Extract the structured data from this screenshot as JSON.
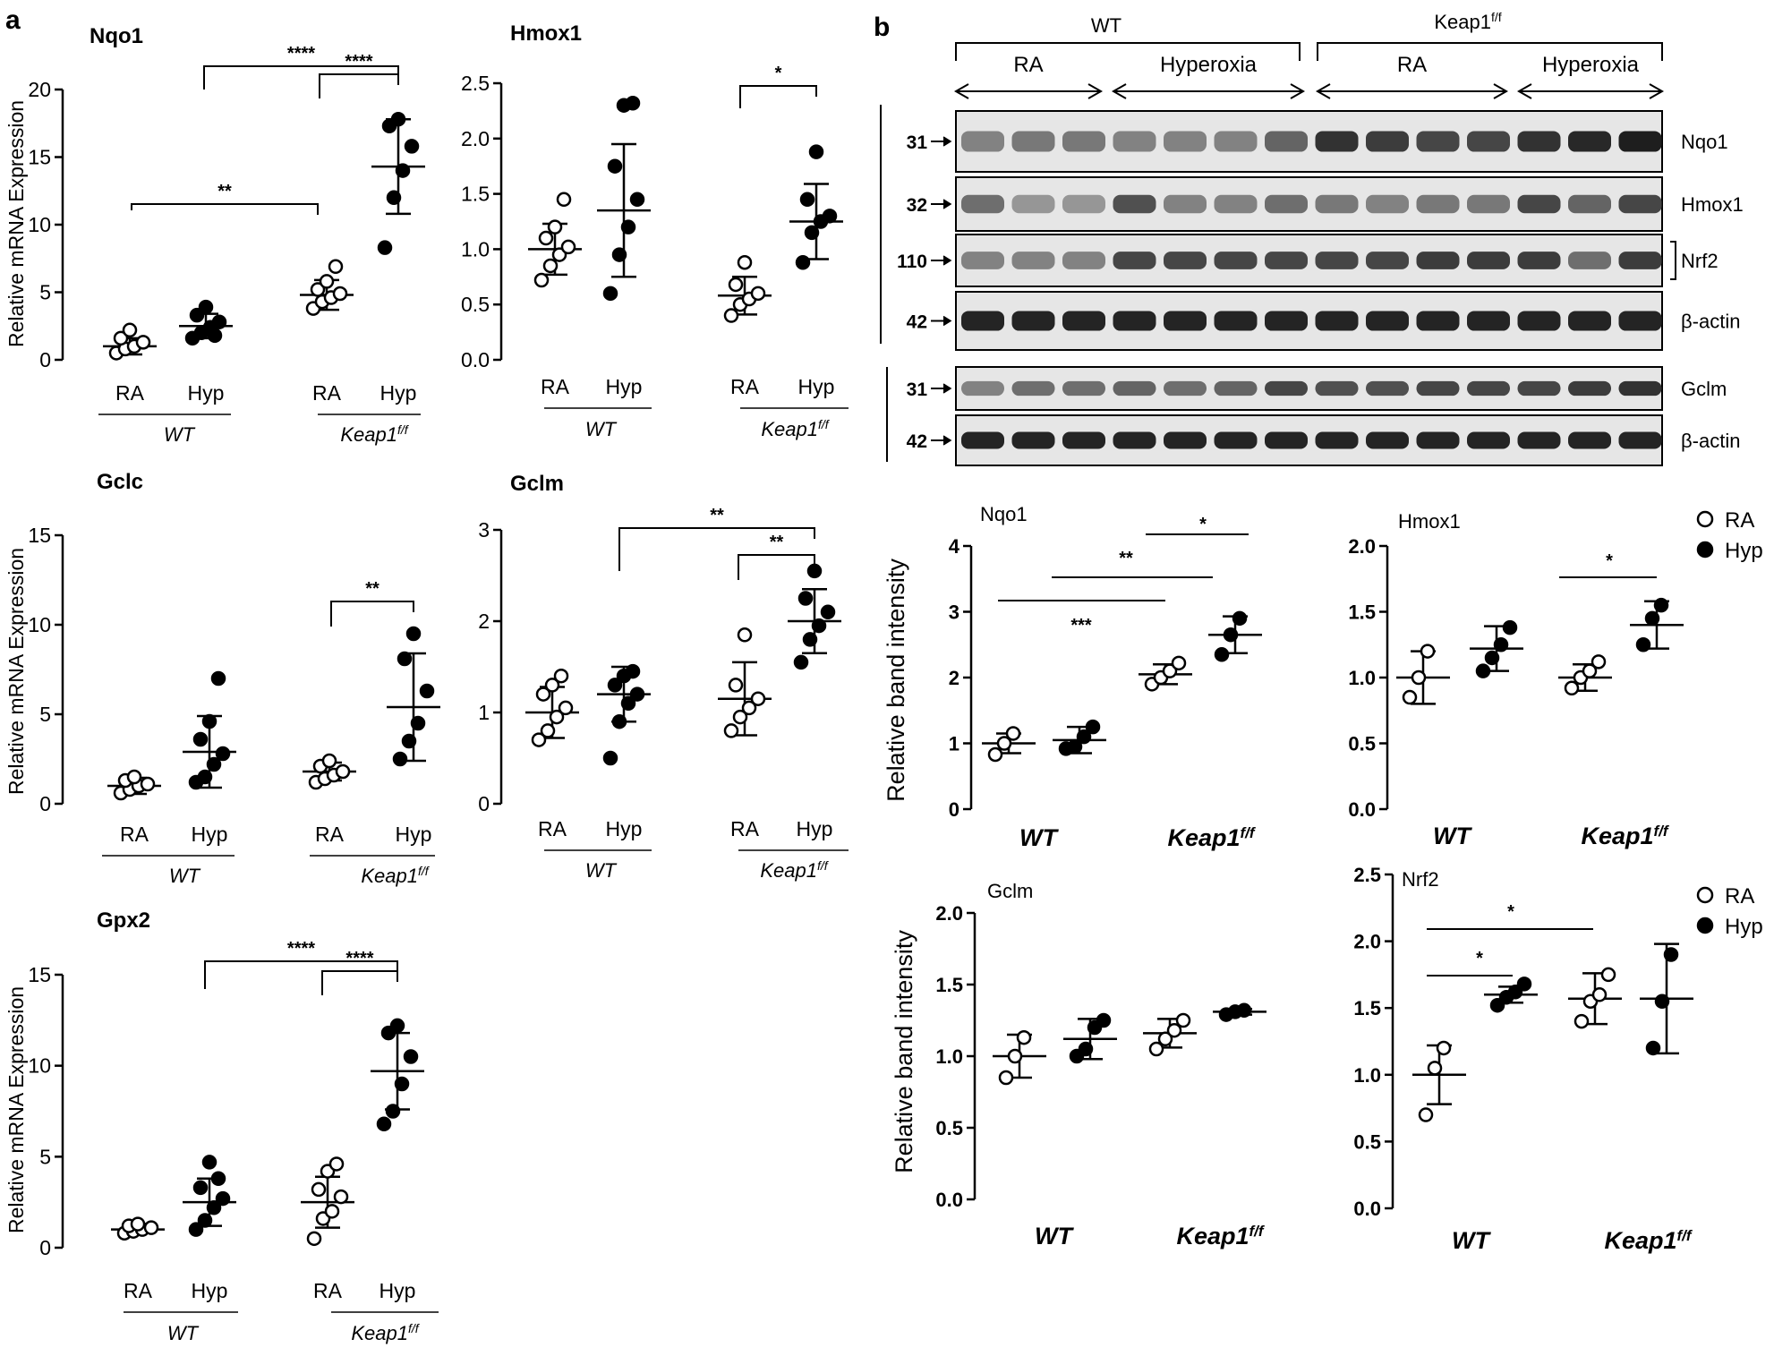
{
  "panel_labels": {
    "a": "a",
    "b": "b"
  },
  "common": {
    "ylabel_mrna": "Relative mRNA Expression",
    "ylabel_band": "Relative band intensity",
    "wt": "WT",
    "keap_base": "Keap1",
    "keap_sup": "f/f",
    "ra": "RA",
    "hyp": "Hyp",
    "hyperoxia": "Hyperoxia"
  },
  "legend": {
    "ra": "RA",
    "hyp": "Hyp"
  },
  "blot": {
    "header_wt": "WT",
    "header_keap_base": "Keap1",
    "header_keap_sup": "f/f",
    "conditions": [
      "RA",
      "Hyperoxia",
      "RA",
      "Hyperoxia"
    ],
    "rows": [
      {
        "mw": "31",
        "label": "Nqo1"
      },
      {
        "mw": "32",
        "label": "Hmox1"
      },
      {
        "mw": "110",
        "label": "Nrf2"
      },
      {
        "mw": "42",
        "label": "β-actin"
      },
      {
        "mw": "31",
        "label": "Gclm"
      },
      {
        "mw": "42",
        "label": "β-actin"
      }
    ]
  },
  "chart_data": [
    {
      "type": "scatter",
      "title": "Nqo1",
      "ylabel": "Relative mRNA Expression",
      "ylim": [
        0,
        20
      ],
      "yticks": [
        "0",
        "5",
        "10",
        "15",
        "20"
      ],
      "groups": [
        {
          "group": "WT",
          "condition": "RA",
          "mean": 1.0,
          "sd": 0.6,
          "values": [
            0.5,
            0.8,
            1.0,
            1.3,
            1.6,
            2.2
          ]
        },
        {
          "group": "WT",
          "condition": "Hyp",
          "mean": 2.5,
          "sd": 0.9,
          "values": [
            1.6,
            2.0,
            2.4,
            2.8,
            3.3,
            3.9,
            1.8
          ]
        },
        {
          "group": "Keap1f/f",
          "condition": "RA",
          "mean": 4.8,
          "sd": 1.1,
          "values": [
            3.8,
            4.3,
            4.6,
            4.9,
            5.2,
            5.8,
            6.9
          ]
        },
        {
          "group": "Keap1f/f",
          "condition": "Hyp",
          "mean": 14.3,
          "sd": 3.5,
          "values": [
            8.3,
            12.0,
            14.0,
            15.8,
            17.3,
            17.8
          ]
        }
      ],
      "significance": [
        "**",
        "****",
        "****"
      ]
    },
    {
      "type": "scatter",
      "title": "Hmox1",
      "ylabel": "",
      "ylim": [
        0,
        2.5
      ],
      "yticks": [
        "0.0",
        "0.5",
        "1.0",
        "1.5",
        "2.0",
        "2.5"
      ],
      "groups": [
        {
          "group": "WT",
          "condition": "RA",
          "mean": 1.0,
          "sd": 0.23,
          "values": [
            0.72,
            0.85,
            0.95,
            1.02,
            1.1,
            1.2,
            1.45
          ]
        },
        {
          "group": "WT",
          "condition": "Hyp",
          "mean": 1.35,
          "sd": 0.6,
          "values": [
            0.6,
            0.95,
            1.2,
            1.45,
            1.75,
            2.3,
            2.32
          ]
        },
        {
          "group": "Keap1f/f",
          "condition": "RA",
          "mean": 0.58,
          "sd": 0.17,
          "values": [
            0.4,
            0.5,
            0.55,
            0.6,
            0.68,
            0.88
          ]
        },
        {
          "group": "Keap1f/f",
          "condition": "Hyp",
          "mean": 1.25,
          "sd": 0.34,
          "values": [
            0.88,
            1.15,
            1.25,
            1.3,
            1.45,
            1.88
          ]
        }
      ],
      "significance": [
        "*"
      ]
    },
    {
      "type": "scatter",
      "title": "Gclc",
      "ylabel": "Relative mRNA Expression",
      "ylim": [
        0,
        15
      ],
      "yticks": [
        "0",
        "5",
        "10",
        "15"
      ],
      "groups": [
        {
          "group": "WT",
          "condition": "RA",
          "mean": 1.0,
          "sd": 0.45,
          "values": [
            0.6,
            0.8,
            1.0,
            1.1,
            1.3,
            1.5
          ]
        },
        {
          "group": "WT",
          "condition": "Hyp",
          "mean": 2.9,
          "sd": 2.0,
          "values": [
            1.2,
            1.5,
            2.2,
            2.8,
            3.6,
            4.6,
            7.0
          ]
        },
        {
          "group": "Keap1f/f",
          "condition": "RA",
          "mean": 1.8,
          "sd": 0.5,
          "values": [
            1.2,
            1.4,
            1.6,
            1.8,
            2.1,
            2.4
          ]
        },
        {
          "group": "Keap1f/f",
          "condition": "Hyp",
          "mean": 5.4,
          "sd": 3.0,
          "values": [
            2.5,
            3.5,
            4.5,
            6.3,
            8.1,
            9.5
          ]
        }
      ],
      "significance": [
        "**"
      ]
    },
    {
      "type": "scatter",
      "title": "Gclm",
      "ylabel": "",
      "ylim": [
        0,
        3
      ],
      "yticks": [
        "0",
        "1",
        "2",
        "3"
      ],
      "groups": [
        {
          "group": "WT",
          "condition": "RA",
          "mean": 1.0,
          "sd": 0.28,
          "values": [
            0.7,
            0.8,
            0.95,
            1.05,
            1.2,
            1.3,
            1.4
          ]
        },
        {
          "group": "WT",
          "condition": "Hyp",
          "mean": 1.2,
          "sd": 0.3,
          "values": [
            0.5,
            0.9,
            1.1,
            1.2,
            1.3,
            1.4,
            1.45
          ]
        },
        {
          "group": "Keap1f/f",
          "condition": "RA",
          "mean": 1.15,
          "sd": 0.4,
          "values": [
            0.8,
            0.95,
            1.05,
            1.15,
            1.3,
            1.85
          ]
        },
        {
          "group": "Keap1f/f",
          "condition": "Hyp",
          "mean": 2.0,
          "sd": 0.35,
          "values": [
            1.55,
            1.8,
            1.95,
            2.1,
            2.25,
            2.55
          ]
        }
      ],
      "significance": [
        "**",
        "**"
      ]
    },
    {
      "type": "scatter",
      "title": "Gpx2",
      "ylabel": "Relative mRNA Expression",
      "ylim": [
        0,
        15
      ],
      "yticks": [
        "0",
        "5",
        "10",
        "15"
      ],
      "groups": [
        {
          "group": "WT",
          "condition": "RA",
          "mean": 1.0,
          "sd": 0.2,
          "values": [
            0.8,
            0.9,
            1.0,
            1.1,
            1.2,
            1.3
          ]
        },
        {
          "group": "WT",
          "condition": "Hyp",
          "mean": 2.5,
          "sd": 1.3,
          "values": [
            1.0,
            1.5,
            2.2,
            2.7,
            3.3,
            4.7,
            3.8
          ]
        },
        {
          "group": "Keap1f/f",
          "condition": "RA",
          "mean": 2.5,
          "sd": 1.4,
          "values": [
            0.5,
            1.6,
            2.0,
            2.8,
            3.2,
            4.2,
            4.6
          ]
        },
        {
          "group": "Keap1f/f",
          "condition": "Hyp",
          "mean": 9.7,
          "sd": 2.1,
          "values": [
            6.8,
            7.5,
            9.0,
            10.5,
            11.8,
            12.2
          ]
        }
      ],
      "significance": [
        "****",
        "****"
      ]
    },
    {
      "type": "scatter",
      "title": "Nqo1",
      "ylabel": "Relative band intensity",
      "ylim": [
        0,
        4
      ],
      "yticks": [
        "0",
        "1",
        "2",
        "3",
        "4"
      ],
      "groups": [
        {
          "group": "WT",
          "condition": "RA",
          "mean": 1.0,
          "sd": 0.15,
          "values": [
            0.83,
            1.0,
            1.15
          ]
        },
        {
          "group": "WT",
          "condition": "Hyp",
          "mean": 1.05,
          "sd": 0.2,
          "values": [
            0.92,
            0.95,
            1.1,
            1.25
          ]
        },
        {
          "group": "Keap1f/f",
          "condition": "RA",
          "mean": 2.05,
          "sd": 0.15,
          "values": [
            1.9,
            2.0,
            2.1,
            2.22
          ]
        },
        {
          "group": "Keap1f/f",
          "condition": "Hyp",
          "mean": 2.65,
          "sd": 0.28,
          "values": [
            2.35,
            2.65,
            2.9
          ]
        }
      ],
      "significance": [
        "***",
        "**",
        "*"
      ]
    },
    {
      "type": "scatter",
      "title": "Hmox1",
      "ylabel": "",
      "ylim": [
        0,
        2.0
      ],
      "yticks": [
        "0.0",
        "0.5",
        "1.0",
        "1.5",
        "2.0"
      ],
      "groups": [
        {
          "group": "WT",
          "condition": "RA",
          "mean": 1.0,
          "sd": 0.2,
          "values": [
            0.85,
            1.0,
            1.2
          ]
        },
        {
          "group": "WT",
          "condition": "Hyp",
          "mean": 1.22,
          "sd": 0.17,
          "values": [
            1.05,
            1.15,
            1.25,
            1.38
          ]
        },
        {
          "group": "Keap1f/f",
          "condition": "RA",
          "mean": 1.0,
          "sd": 0.1,
          "values": [
            0.92,
            1.0,
            1.05,
            1.12
          ]
        },
        {
          "group": "Keap1f/f",
          "condition": "Hyp",
          "mean": 1.4,
          "sd": 0.18,
          "values": [
            1.25,
            1.45,
            1.55
          ]
        }
      ],
      "significance": [
        "*"
      ]
    },
    {
      "type": "scatter",
      "title": "Gclm",
      "ylabel": "Relative band intensity",
      "ylim": [
        0,
        2.0
      ],
      "yticks": [
        "0.0",
        "0.5",
        "1.0",
        "1.5",
        "2.0"
      ],
      "groups": [
        {
          "group": "WT",
          "condition": "RA",
          "mean": 1.0,
          "sd": 0.15,
          "values": [
            0.85,
            1.0,
            1.13
          ]
        },
        {
          "group": "WT",
          "condition": "Hyp",
          "mean": 1.12,
          "sd": 0.14,
          "values": [
            1.0,
            1.05,
            1.2,
            1.25
          ]
        },
        {
          "group": "Keap1f/f",
          "condition": "RA",
          "mean": 1.16,
          "sd": 0.1,
          "values": [
            1.05,
            1.12,
            1.18,
            1.25
          ]
        },
        {
          "group": "Keap1f/f",
          "condition": "Hyp",
          "mean": 1.31,
          "sd": 0.02,
          "values": [
            1.29,
            1.31,
            1.32
          ]
        }
      ],
      "significance": []
    },
    {
      "type": "scatter",
      "title": "Nrf2",
      "ylabel": "",
      "ylim": [
        0,
        2.5
      ],
      "yticks": [
        "0.0",
        "0.5",
        "1.0",
        "1.5",
        "2.0",
        "2.5"
      ],
      "groups": [
        {
          "group": "WT",
          "condition": "RA",
          "mean": 1.0,
          "sd": 0.22,
          "values": [
            0.7,
            1.05,
            1.2
          ]
        },
        {
          "group": "WT",
          "condition": "Hyp",
          "mean": 1.6,
          "sd": 0.06,
          "values": [
            1.52,
            1.58,
            1.62,
            1.68
          ]
        },
        {
          "group": "Keap1f/f",
          "condition": "RA",
          "mean": 1.57,
          "sd": 0.19,
          "values": [
            1.4,
            1.55,
            1.6,
            1.75
          ]
        },
        {
          "group": "Keap1f/f",
          "condition": "Hyp",
          "mean": 1.57,
          "sd": 0.41,
          "values": [
            1.2,
            1.55,
            1.9
          ]
        }
      ],
      "significance": [
        "*",
        "*"
      ]
    }
  ]
}
